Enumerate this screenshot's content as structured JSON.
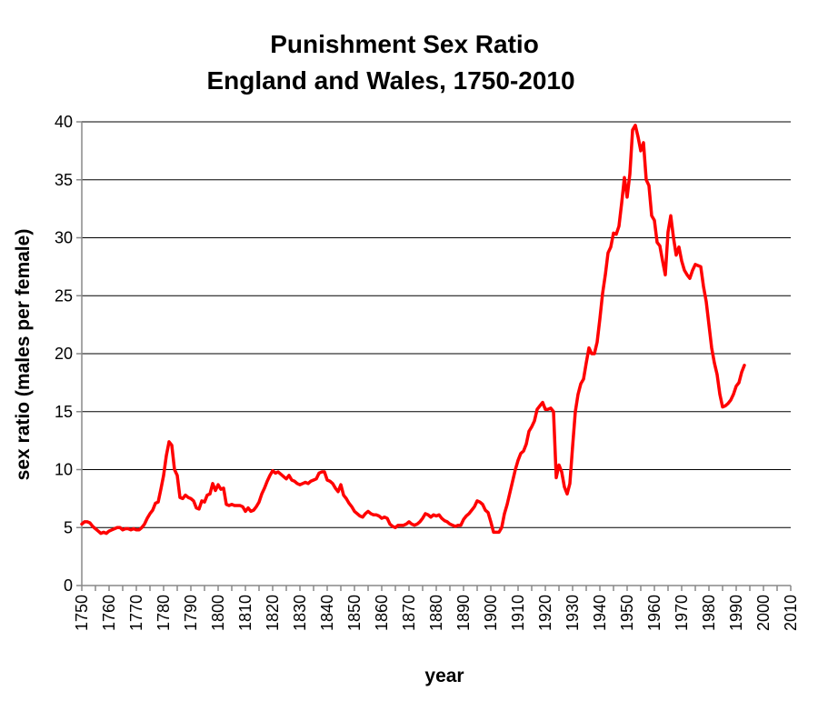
{
  "chart_data": {
    "type": "line",
    "title": "Punishment Sex Ratio",
    "subtitle": "England and Wales, 1750-2010",
    "xlabel": "year",
    "ylabel": "sex ratio (males per female)",
    "xlim": [
      1750,
      2010
    ],
    "ylim": [
      0,
      40
    ],
    "x_ticks": [
      1750,
      1760,
      1770,
      1780,
      1790,
      1800,
      1810,
      1820,
      1830,
      1840,
      1850,
      1860,
      1870,
      1880,
      1890,
      1900,
      1910,
      1920,
      1930,
      1940,
      1950,
      1960,
      1970,
      1980,
      1990,
      2000,
      2010
    ],
    "y_ticks": [
      0,
      5,
      10,
      15,
      20,
      25,
      30,
      35,
      40
    ],
    "grid": "horizontal",
    "legend": "none",
    "series": [
      {
        "color": "#ff0000",
        "points": [
          [
            1750,
            5.3
          ],
          [
            1751,
            5.5
          ],
          [
            1752,
            5.5
          ],
          [
            1753,
            5.4
          ],
          [
            1754,
            5.1
          ],
          [
            1755,
            4.9
          ],
          [
            1756,
            4.7
          ],
          [
            1757,
            4.5
          ],
          [
            1758,
            4.6
          ],
          [
            1759,
            4.5
          ],
          [
            1760,
            4.7
          ],
          [
            1761,
            4.8
          ],
          [
            1762,
            4.9
          ],
          [
            1763,
            5.0
          ],
          [
            1764,
            5.0
          ],
          [
            1765,
            4.8
          ],
          [
            1766,
            4.9
          ],
          [
            1767,
            4.9
          ],
          [
            1768,
            4.8
          ],
          [
            1769,
            4.9
          ],
          [
            1770,
            4.8
          ],
          [
            1771,
            4.8
          ],
          [
            1772,
            5.0
          ],
          [
            1773,
            5.3
          ],
          [
            1774,
            5.8
          ],
          [
            1775,
            6.2
          ],
          [
            1776,
            6.5
          ],
          [
            1777,
            7.1
          ],
          [
            1778,
            7.2
          ],
          [
            1779,
            8.3
          ],
          [
            1780,
            9.5
          ],
          [
            1781,
            11.2
          ],
          [
            1782,
            12.4
          ],
          [
            1783,
            12.1
          ],
          [
            1784,
            10.0
          ],
          [
            1785,
            9.5
          ],
          [
            1786,
            7.6
          ],
          [
            1787,
            7.5
          ],
          [
            1788,
            7.8
          ],
          [
            1789,
            7.6
          ],
          [
            1790,
            7.5
          ],
          [
            1791,
            7.3
          ],
          [
            1792,
            6.7
          ],
          [
            1793,
            6.6
          ],
          [
            1794,
            7.3
          ],
          [
            1795,
            7.2
          ],
          [
            1796,
            7.8
          ],
          [
            1797,
            7.9
          ],
          [
            1798,
            8.8
          ],
          [
            1799,
            8.2
          ],
          [
            1800,
            8.7
          ],
          [
            1801,
            8.3
          ],
          [
            1802,
            8.4
          ],
          [
            1803,
            7.0
          ],
          [
            1804,
            6.9
          ],
          [
            1805,
            7.0
          ],
          [
            1806,
            6.9
          ],
          [
            1807,
            6.9
          ],
          [
            1808,
            6.9
          ],
          [
            1809,
            6.8
          ],
          [
            1810,
            6.4
          ],
          [
            1811,
            6.7
          ],
          [
            1812,
            6.4
          ],
          [
            1813,
            6.5
          ],
          [
            1814,
            6.8
          ],
          [
            1815,
            7.2
          ],
          [
            1816,
            7.9
          ],
          [
            1817,
            8.4
          ],
          [
            1818,
            9.0
          ],
          [
            1819,
            9.5
          ],
          [
            1820,
            9.9
          ],
          [
            1821,
            9.7
          ],
          [
            1822,
            9.8
          ],
          [
            1823,
            9.6
          ],
          [
            1824,
            9.4
          ],
          [
            1825,
            9.2
          ],
          [
            1826,
            9.5
          ],
          [
            1827,
            9.1
          ],
          [
            1828,
            9.0
          ],
          [
            1829,
            8.8
          ],
          [
            1830,
            8.7
          ],
          [
            1831,
            8.8
          ],
          [
            1832,
            8.9
          ],
          [
            1833,
            8.8
          ],
          [
            1834,
            9.0
          ],
          [
            1835,
            9.1
          ],
          [
            1836,
            9.2
          ],
          [
            1837,
            9.7
          ],
          [
            1838,
            9.8
          ],
          [
            1839,
            9.8
          ],
          [
            1840,
            9.1
          ],
          [
            1841,
            9.0
          ],
          [
            1842,
            8.8
          ],
          [
            1843,
            8.4
          ],
          [
            1844,
            8.1
          ],
          [
            1845,
            8.7
          ],
          [
            1846,
            7.8
          ],
          [
            1847,
            7.5
          ],
          [
            1848,
            7.1
          ],
          [
            1849,
            6.8
          ],
          [
            1850,
            6.4
          ],
          [
            1851,
            6.2
          ],
          [
            1852,
            6.0
          ],
          [
            1853,
            5.9
          ],
          [
            1854,
            6.2
          ],
          [
            1855,
            6.4
          ],
          [
            1856,
            6.2
          ],
          [
            1857,
            6.1
          ],
          [
            1858,
            6.1
          ],
          [
            1859,
            6.0
          ],
          [
            1860,
            5.8
          ],
          [
            1861,
            5.9
          ],
          [
            1862,
            5.8
          ],
          [
            1863,
            5.3
          ],
          [
            1864,
            5.1
          ],
          [
            1865,
            5.0
          ],
          [
            1866,
            5.2
          ],
          [
            1867,
            5.2
          ],
          [
            1868,
            5.2
          ],
          [
            1869,
            5.3
          ],
          [
            1870,
            5.5
          ],
          [
            1871,
            5.3
          ],
          [
            1872,
            5.2
          ],
          [
            1873,
            5.3
          ],
          [
            1874,
            5.5
          ],
          [
            1875,
            5.8
          ],
          [
            1876,
            6.2
          ],
          [
            1877,
            6.1
          ],
          [
            1878,
            5.9
          ],
          [
            1879,
            6.1
          ],
          [
            1880,
            6.0
          ],
          [
            1881,
            6.1
          ],
          [
            1882,
            5.8
          ],
          [
            1883,
            5.6
          ],
          [
            1884,
            5.5
          ],
          [
            1885,
            5.3
          ],
          [
            1886,
            5.2
          ],
          [
            1887,
            5.1
          ],
          [
            1888,
            5.2
          ],
          [
            1889,
            5.2
          ],
          [
            1890,
            5.7
          ],
          [
            1891,
            6.0
          ],
          [
            1892,
            6.2
          ],
          [
            1893,
            6.5
          ],
          [
            1894,
            6.8
          ],
          [
            1895,
            7.3
          ],
          [
            1896,
            7.2
          ],
          [
            1897,
            7.0
          ],
          [
            1898,
            6.5
          ],
          [
            1899,
            6.3
          ],
          [
            1900,
            5.5
          ],
          [
            1901,
            4.6
          ],
          [
            1902,
            4.6
          ],
          [
            1903,
            4.6
          ],
          [
            1904,
            5.0
          ],
          [
            1905,
            6.2
          ],
          [
            1906,
            7.0
          ],
          [
            1907,
            8.0
          ],
          [
            1908,
            9.0
          ],
          [
            1909,
            10.0
          ],
          [
            1910,
            10.8
          ],
          [
            1911,
            11.4
          ],
          [
            1912,
            11.6
          ],
          [
            1913,
            12.2
          ],
          [
            1914,
            13.3
          ],
          [
            1915,
            13.7
          ],
          [
            1916,
            14.2
          ],
          [
            1917,
            15.2
          ],
          [
            1918,
            15.5
          ],
          [
            1919,
            15.8
          ],
          [
            1920,
            15.2
          ],
          [
            1921,
            15.2
          ],
          [
            1922,
            15.3
          ],
          [
            1923,
            15.0
          ],
          [
            1924,
            9.3
          ],
          [
            1925,
            10.4
          ],
          [
            1926,
            9.8
          ],
          [
            1927,
            8.5
          ],
          [
            1928,
            7.9
          ],
          [
            1929,
            8.8
          ],
          [
            1930,
            12.0
          ],
          [
            1931,
            15.0
          ],
          [
            1932,
            16.5
          ],
          [
            1933,
            17.4
          ],
          [
            1934,
            17.8
          ],
          [
            1935,
            19.2
          ],
          [
            1936,
            20.5
          ],
          [
            1937,
            20.0
          ],
          [
            1938,
            20.0
          ],
          [
            1939,
            21.0
          ],
          [
            1940,
            23.0
          ],
          [
            1941,
            25.2
          ],
          [
            1942,
            26.8
          ],
          [
            1943,
            28.7
          ],
          [
            1944,
            29.2
          ],
          [
            1945,
            30.4
          ],
          [
            1946,
            30.3
          ],
          [
            1947,
            31.0
          ],
          [
            1948,
            33.0
          ],
          [
            1949,
            35.2
          ],
          [
            1950,
            33.5
          ],
          [
            1951,
            35.5
          ],
          [
            1952,
            39.3
          ],
          [
            1953,
            39.7
          ],
          [
            1954,
            38.7
          ],
          [
            1955,
            37.5
          ],
          [
            1956,
            38.2
          ],
          [
            1957,
            35.0
          ],
          [
            1958,
            34.5
          ],
          [
            1959,
            31.9
          ],
          [
            1960,
            31.5
          ],
          [
            1961,
            29.6
          ],
          [
            1962,
            29.3
          ],
          [
            1963,
            28.0
          ],
          [
            1964,
            26.8
          ],
          [
            1965,
            30.5
          ],
          [
            1966,
            31.9
          ],
          [
            1967,
            30.0
          ],
          [
            1968,
            28.5
          ],
          [
            1969,
            29.2
          ],
          [
            1970,
            28.0
          ],
          [
            1971,
            27.2
          ],
          [
            1972,
            26.8
          ],
          [
            1973,
            26.5
          ],
          [
            1974,
            27.2
          ],
          [
            1975,
            27.7
          ],
          [
            1976,
            27.6
          ],
          [
            1977,
            27.5
          ],
          [
            1978,
            25.8
          ],
          [
            1979,
            24.5
          ],
          [
            1980,
            22.5
          ],
          [
            1981,
            20.5
          ],
          [
            1982,
            19.2
          ],
          [
            1983,
            18.2
          ],
          [
            1984,
            16.5
          ],
          [
            1985,
            15.4
          ],
          [
            1986,
            15.5
          ],
          [
            1987,
            15.7
          ],
          [
            1988,
            16.0
          ],
          [
            1989,
            16.5
          ],
          [
            1990,
            17.2
          ],
          [
            1991,
            17.5
          ],
          [
            1992,
            18.4
          ],
          [
            1993,
            19.0
          ]
        ]
      }
    ]
  }
}
